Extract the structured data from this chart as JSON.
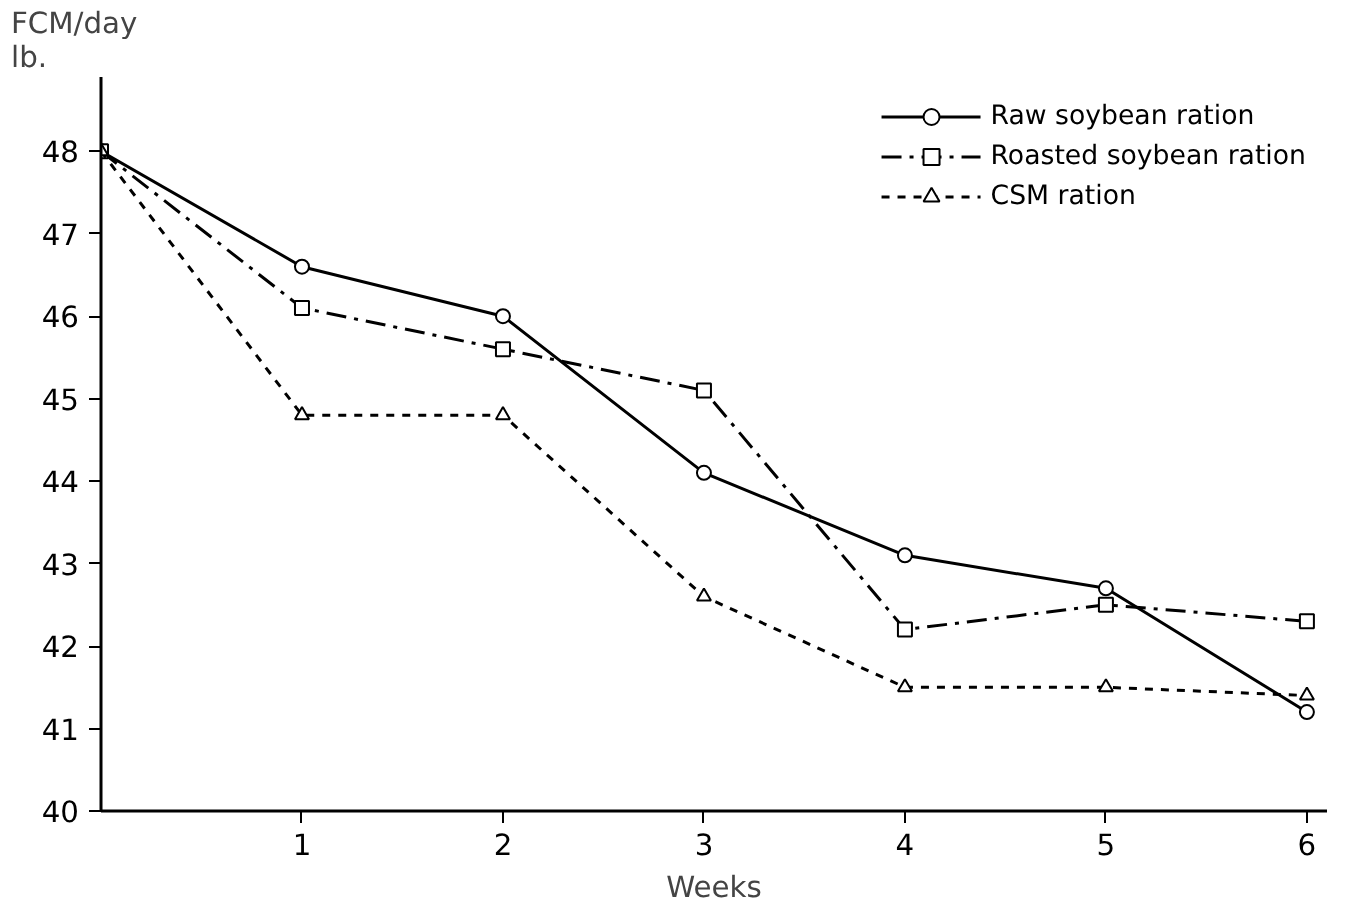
{
  "chart_data": {
    "type": "line",
    "xlabel": "Weeks",
    "ylabel": "FCM/day\nlb.",
    "x": [
      0,
      1,
      2,
      3,
      4,
      5,
      6
    ],
    "series": [
      {
        "name": "Raw soybean ration",
        "color": "#000000",
        "marker": "circle",
        "line_style": "solid",
        "values": [
          48.0,
          46.6,
          46.0,
          44.1,
          43.1,
          42.7,
          41.2
        ]
      },
      {
        "name": "Roasted soybean ration",
        "color": "#000000",
        "marker": "square",
        "line_style": "dashdot",
        "values": [
          48.0,
          46.1,
          45.6,
          45.1,
          42.2,
          42.5,
          42.3
        ]
      },
      {
        "name": "CSM ration",
        "color": "#000000",
        "marker": "triangle",
        "line_style": "dashed",
        "values": [
          48.0,
          44.8,
          44.8,
          42.6,
          41.5,
          41.5,
          41.4
        ]
      }
    ],
    "xlim": [
      0,
      6.1
    ],
    "ylim": [
      40,
      48.9
    ],
    "xticks": [
      1,
      2,
      3,
      4,
      5,
      6
    ],
    "yticks": [
      40,
      41,
      42,
      43,
      44,
      45,
      46,
      47,
      48
    ],
    "grid": false,
    "legend": "top right"
  }
}
